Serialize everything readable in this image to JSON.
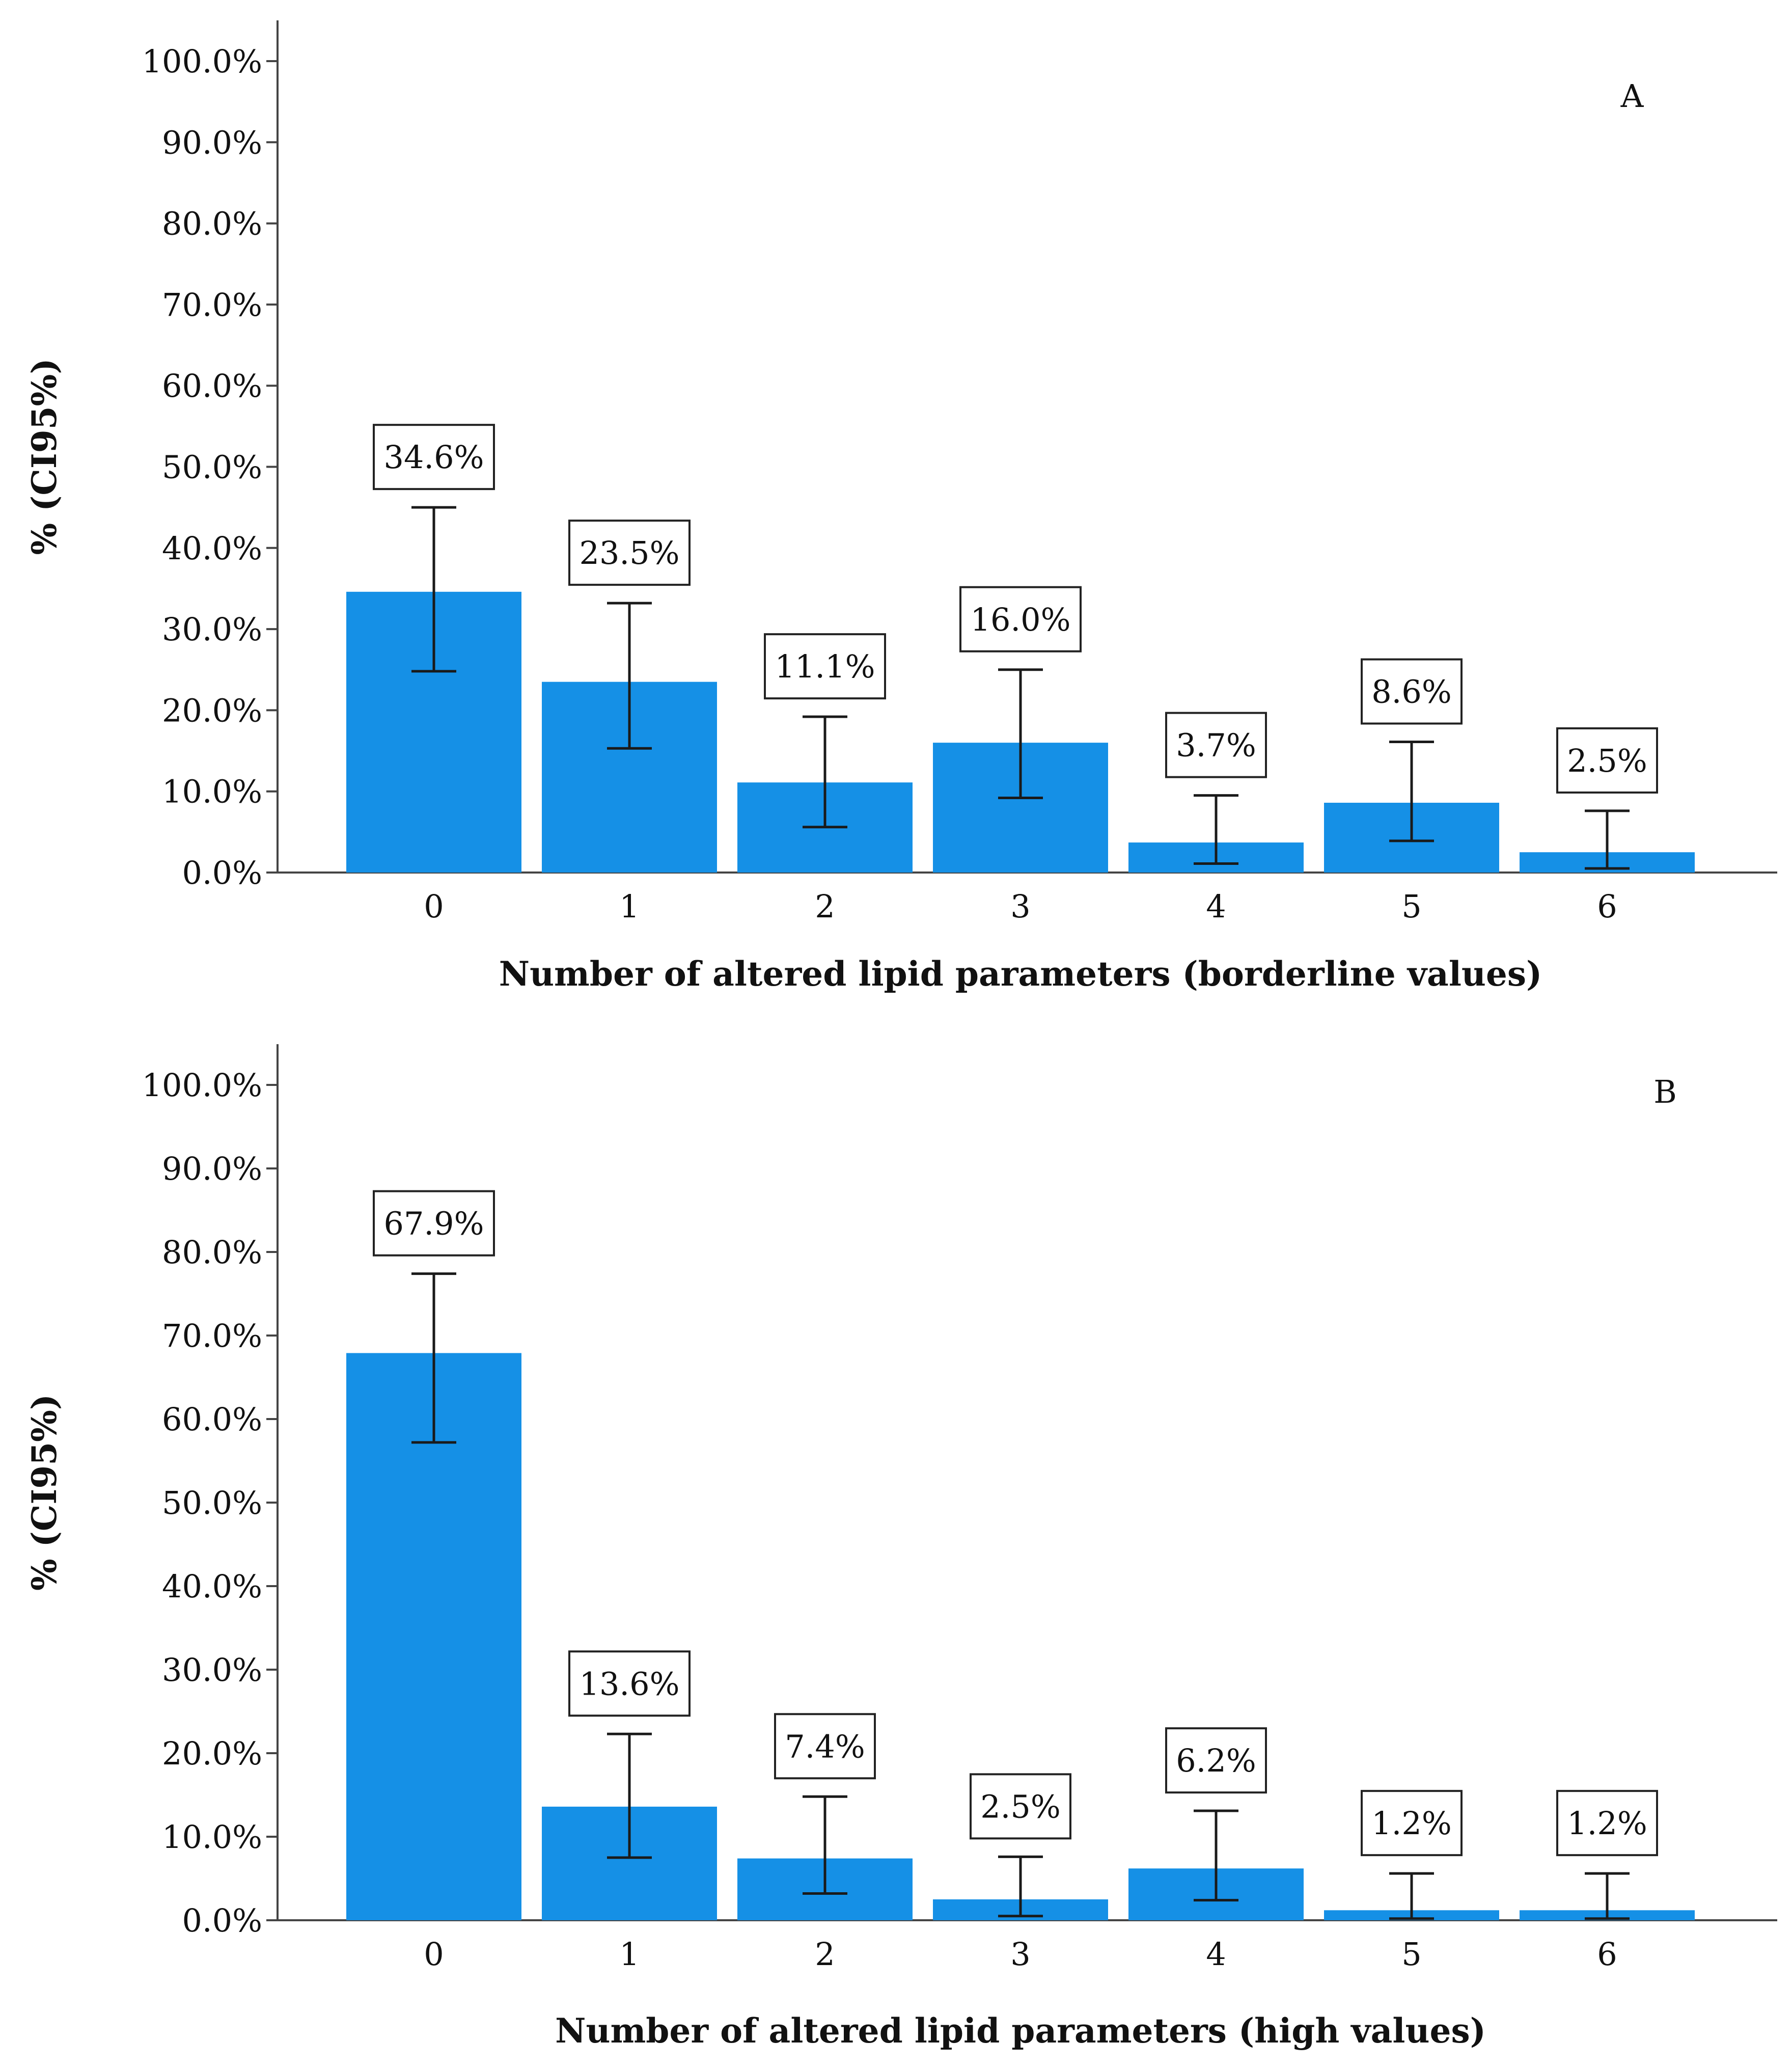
{
  "chart_data": [
    {
      "type": "bar",
      "panel_label": "A",
      "categories": [
        "0",
        "1",
        "2",
        "3",
        "4",
        "5",
        "6"
      ],
      "values": [
        34.6,
        23.5,
        11.1,
        16.0,
        3.7,
        8.6,
        2.5
      ],
      "value_labels": [
        "34.6%",
        "23.5%",
        "11.1%",
        "16.0%",
        "3.7%",
        "8.6%",
        "2.5%"
      ],
      "ci_lower": [
        24.8,
        15.3,
        5.6,
        9.2,
        1.1,
        3.9,
        0.5
      ],
      "ci_upper": [
        45.0,
        33.2,
        19.2,
        25.0,
        9.5,
        16.1,
        7.6
      ],
      "xlabel": "Number of altered lipid parameters (borderline values)",
      "ylabel": "% (CI95%)",
      "ylim": [
        0,
        100
      ],
      "yticks": [
        0,
        10,
        20,
        30,
        40,
        50,
        60,
        70,
        80,
        90,
        100
      ],
      "ytick_labels": [
        "0.0%",
        "10.0%",
        "20.0%",
        "30.0%",
        "40.0%",
        "50.0%",
        "60.0%",
        "70.0%",
        "80.0%",
        "90.0%",
        "100.0%"
      ],
      "bar_color": "#1590e6",
      "grid": false
    },
    {
      "type": "bar",
      "panel_label": "B",
      "categories": [
        "0",
        "1",
        "2",
        "3",
        "4",
        "5",
        "6"
      ],
      "values": [
        67.9,
        13.6,
        7.4,
        2.5,
        6.2,
        1.2,
        1.2
      ],
      "value_labels": [
        "67.9%",
        "13.6%",
        "7.4%",
        "2.5%",
        "6.2%",
        "1.2%",
        "1.2%"
      ],
      "ci_lower": [
        57.2,
        7.5,
        3.2,
        0.5,
        2.4,
        0.2,
        0.2
      ],
      "ci_upper": [
        77.4,
        22.3,
        14.8,
        7.6,
        13.1,
        5.6,
        5.6
      ],
      "xlabel": "Number of altered lipid parameters (high values)",
      "ylabel": "% (CI95%)",
      "ylim": [
        0,
        100
      ],
      "yticks": [
        0,
        10,
        20,
        30,
        40,
        50,
        60,
        70,
        80,
        90,
        100
      ],
      "ytick_labels": [
        "0.0%",
        "10.0%",
        "20.0%",
        "30.0%",
        "40.0%",
        "50.0%",
        "60.0%",
        "70.0%",
        "80.0%",
        "90.0%",
        "100.0%"
      ],
      "bar_color": "#1590e6",
      "grid": false
    }
  ]
}
